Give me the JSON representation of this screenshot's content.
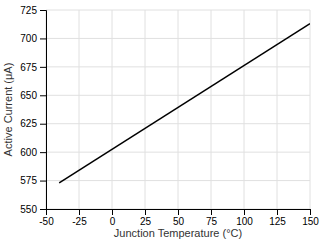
{
  "chart_data": {
    "type": "line",
    "xlabel": "Junction Temperature (°C)",
    "ylabel": "Active Current (μA)",
    "x": [
      -40,
      150
    ],
    "values": [
      573,
      713
    ],
    "color": "#000000",
    "xlim": [
      -50,
      150
    ],
    "ylim": [
      550,
      725
    ],
    "xticks": [
      -50,
      -25,
      0,
      25,
      50,
      75,
      100,
      125,
      150
    ],
    "yticks": [
      550,
      575,
      600,
      625,
      650,
      675,
      700,
      725
    ],
    "grid": true
  }
}
